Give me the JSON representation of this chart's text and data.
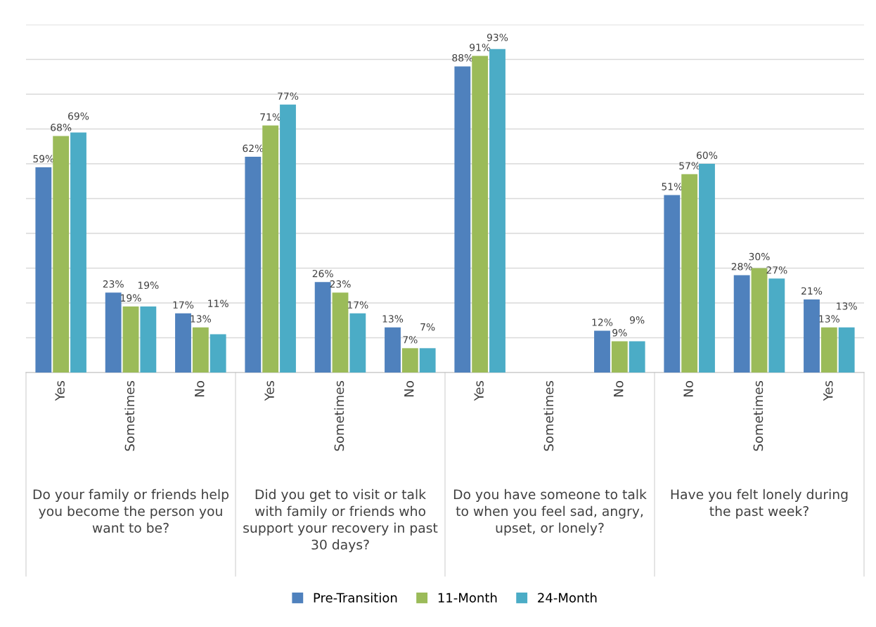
{
  "chart_data": {
    "type": "bar",
    "categories": [
      "Yes",
      "Sometimes",
      "No",
      "Yes",
      "Sometimes",
      "No",
      "Yes",
      "Sometimes",
      "No",
      "No",
      "Sometimes",
      "Yes"
    ],
    "series": [
      {
        "name": "Pre-Transition",
        "color": "#4f81bd",
        "values": [
          59,
          23,
          17,
          62,
          26,
          13,
          88,
          null,
          12,
          51,
          28,
          21
        ],
        "value_labels": [
          "59%",
          "23%",
          "17%",
          "62%",
          "26%",
          "13%",
          "88%",
          null,
          "12%",
          "51%",
          "28%",
          "21%"
        ]
      },
      {
        "name": "11-Month",
        "color": "#9bbb59",
        "values": [
          68,
          19,
          13,
          71,
          23,
          7,
          91,
          null,
          9,
          57,
          30,
          13
        ],
        "value_labels": [
          "68%",
          "19%",
          "13%",
          "71%",
          "23%",
          "7%",
          "91%",
          null,
          "9%",
          "57%",
          "30%",
          "13%"
        ]
      },
      {
        "name": "24-Month",
        "color": "#4bacc6",
        "values": [
          69,
          19,
          11,
          77,
          17,
          7,
          93,
          null,
          9,
          60,
          27,
          13
        ],
        "value_labels": [
          "69%",
          "19%",
          "11%",
          "77%",
          "17%",
          "7%",
          "93%",
          null,
          "9%",
          "60%",
          "27%",
          "13%"
        ]
      }
    ],
    "annotations": [
      "Do your family or friends help you become the person you want to be?",
      "Did you get to visit or talk with family or friends who support your recovery in past 30 days?",
      "Do you have someone to talk to when you feel sad, angry, upset, or lonely?",
      "Have you felt lonely during the past week?"
    ],
    "ylim": [
      0,
      100
    ],
    "yticks": [
      {
        "value": 0,
        "label": null
      },
      {
        "value": 10,
        "label": null
      },
      {
        "value": 20,
        "label": null
      },
      {
        "value": 30,
        "label": null
      },
      {
        "value": 40,
        "label": null
      },
      {
        "value": 50,
        "label": null
      },
      {
        "value": 60,
        "label": null
      },
      {
        "value": 70,
        "label": null
      },
      {
        "value": 80,
        "label": null
      },
      {
        "value": 90,
        "label": null
      },
      {
        "value": 100,
        "label": null
      }
    ],
    "tick_labels": "x",
    "grid": "y",
    "legend": "bottom"
  }
}
